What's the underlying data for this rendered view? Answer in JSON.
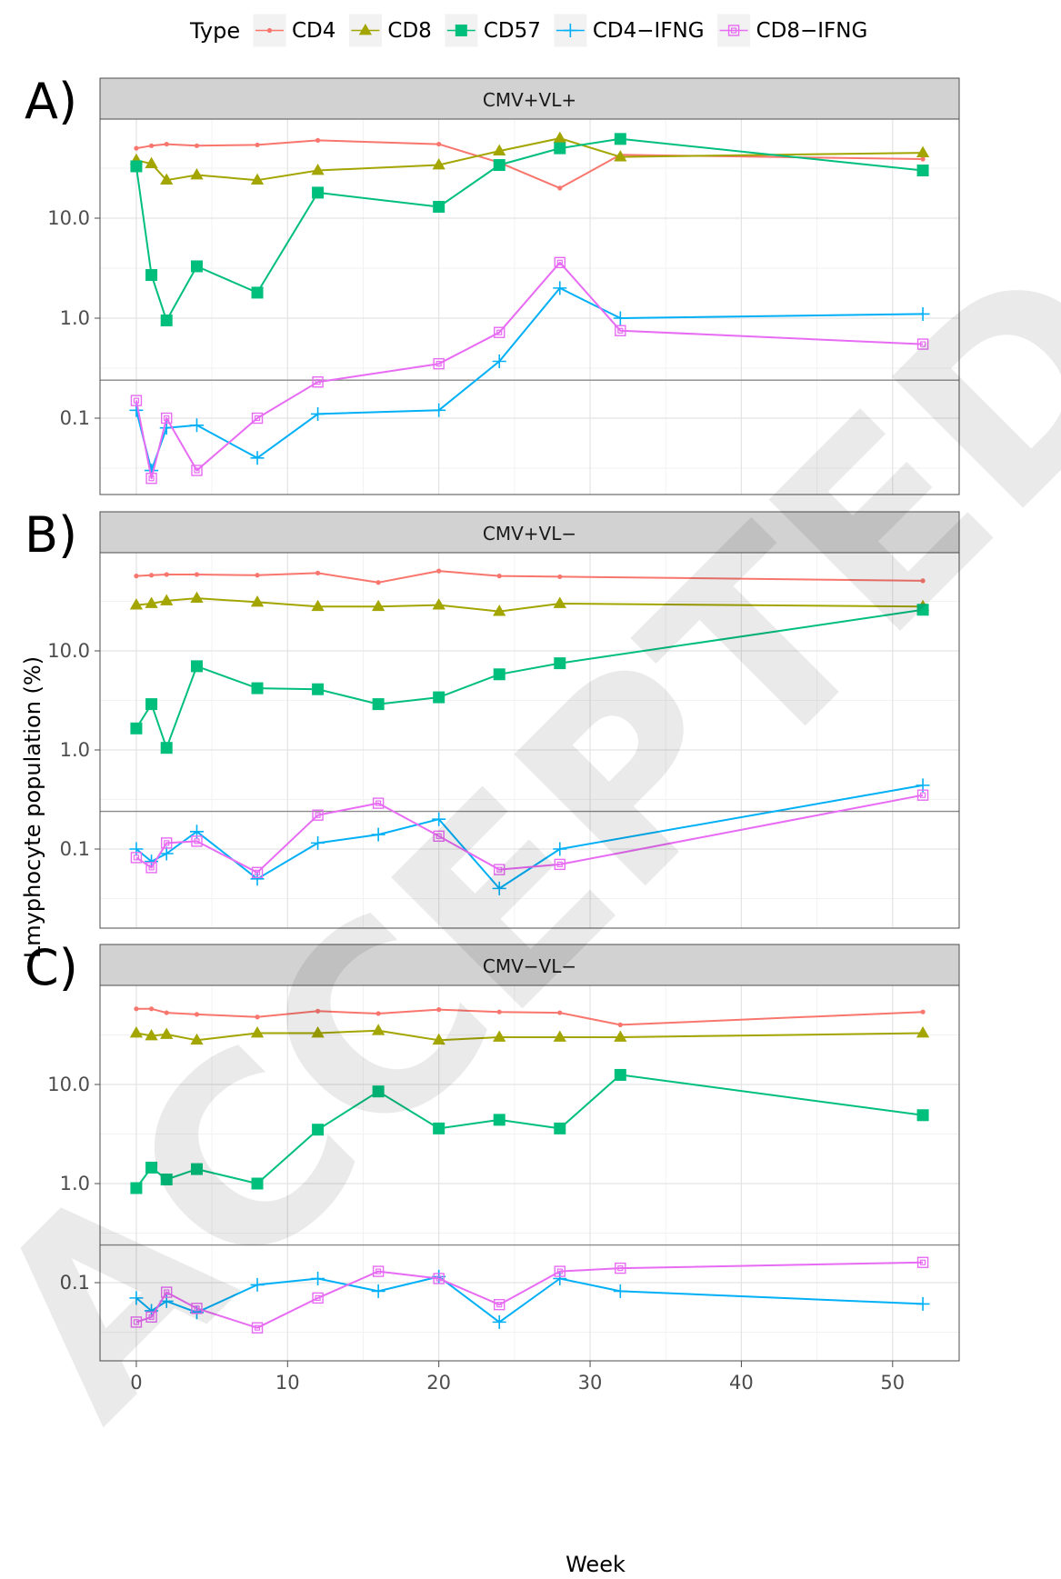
{
  "legend": {
    "title": "Type",
    "items": [
      {
        "name": "CD4",
        "color": "#F8766D",
        "marker": "dot"
      },
      {
        "name": "CD8",
        "color": "#A3A500",
        "marker": "triangle"
      },
      {
        "name": "CD57",
        "color": "#00BF7D",
        "marker": "square"
      },
      {
        "name": "CD4−IFNG",
        "color": "#00B0F6",
        "marker": "plus"
      },
      {
        "name": "CD8−IFNG",
        "color": "#E76BF3",
        "marker": "boxed-square"
      }
    ]
  },
  "axes": {
    "xlabel": "Week",
    "ylabel": "Lmyphocyte population (%)",
    "x_ticks": [
      0,
      10,
      20,
      30,
      40,
      50
    ],
    "y_tick_labels": [
      "10.0",
      "1.0",
      "0.1"
    ]
  },
  "watermark": "ACCEPTED",
  "chart_data": [
    {
      "type": "line",
      "panel_label": "A)",
      "strip": "CMV+VL+",
      "y_scale": "log",
      "series": [
        {
          "name": "CD4",
          "x": [
            0,
            1,
            2,
            4,
            8,
            12,
            20,
            24,
            28,
            32,
            52
          ],
          "y": [
            50,
            53,
            55,
            53,
            54,
            60,
            55,
            36,
            20,
            43,
            39
          ]
        },
        {
          "name": "CD8",
          "x": [
            0,
            1,
            2,
            4,
            8,
            12,
            20,
            24,
            28,
            32,
            52
          ],
          "y": [
            38,
            35,
            24,
            27,
            24,
            30,
            34,
            47,
            63,
            41,
            45
          ]
        },
        {
          "name": "CD57",
          "x": [
            0,
            1,
            2,
            4,
            8,
            12,
            20,
            24,
            28,
            32,
            52
          ],
          "y": [
            33,
            2.7,
            0.95,
            3.3,
            1.8,
            18,
            13,
            34,
            50,
            62,
            30
          ]
        },
        {
          "name": "CD4−IFNG",
          "x": [
            0,
            1,
            2,
            4,
            8,
            12,
            20,
            24,
            28,
            32,
            52
          ],
          "y": [
            0.12,
            0.03,
            0.08,
            0.085,
            0.04,
            0.11,
            0.12,
            0.37,
            2.0,
            1.0,
            1.1
          ]
        },
        {
          "name": "CD8−IFNG",
          "x": [
            0,
            1,
            2,
            4,
            8,
            12,
            20,
            24,
            28,
            32,
            52
          ],
          "y": [
            0.15,
            0.025,
            0.1,
            0.03,
            0.1,
            0.23,
            0.35,
            0.72,
            3.6,
            0.75,
            0.55
          ]
        }
      ]
    },
    {
      "type": "line",
      "panel_label": "B)",
      "strip": "CMV+VL−",
      "y_scale": "log",
      "series": [
        {
          "name": "CD4",
          "x": [
            0,
            1,
            2,
            4,
            8,
            12,
            16,
            20,
            24,
            28,
            52
          ],
          "y": [
            57,
            58,
            59,
            59,
            58,
            61,
            49,
            64,
            57,
            56,
            51
          ]
        },
        {
          "name": "CD8",
          "x": [
            0,
            1,
            2,
            4,
            8,
            12,
            16,
            20,
            24,
            28,
            52
          ],
          "y": [
            29,
            30,
            32,
            34,
            31,
            28,
            28,
            29,
            25,
            30,
            28
          ]
        },
        {
          "name": "CD57",
          "x": [
            0,
            1,
            2,
            4,
            8,
            12,
            16,
            20,
            24,
            28,
            52
          ],
          "y": [
            1.65,
            2.9,
            1.05,
            7.0,
            4.2,
            4.1,
            2.9,
            3.4,
            5.8,
            7.5,
            26
          ]
        },
        {
          "name": "CD4−IFNG",
          "x": [
            0,
            1,
            2,
            4,
            8,
            12,
            16,
            20,
            24,
            28,
            52
          ],
          "y": [
            0.1,
            0.075,
            0.09,
            0.15,
            0.05,
            0.115,
            0.14,
            0.2,
            0.04,
            0.1,
            0.44
          ]
        },
        {
          "name": "CD8−IFNG",
          "x": [
            0,
            1,
            2,
            4,
            8,
            12,
            16,
            20,
            24,
            28,
            52
          ],
          "y": [
            0.082,
            0.065,
            0.115,
            0.12,
            0.058,
            0.22,
            0.29,
            0.135,
            0.062,
            0.07,
            0.35
          ]
        }
      ]
    },
    {
      "type": "line",
      "panel_label": "C)",
      "strip": "CMV−VL−",
      "y_scale": "log",
      "series": [
        {
          "name": "CD4",
          "x": [
            0,
            1,
            2,
            4,
            8,
            12,
            16,
            20,
            24,
            28,
            32,
            52
          ],
          "y": [
            58,
            58,
            53,
            51,
            48,
            55,
            52,
            57,
            54,
            53,
            40,
            54
          ]
        },
        {
          "name": "CD8",
          "x": [
            0,
            1,
            2,
            4,
            8,
            12,
            16,
            20,
            24,
            28,
            32,
            52
          ],
          "y": [
            33,
            31,
            32,
            28,
            33,
            33,
            35,
            28,
            30,
            30,
            30,
            33
          ]
        },
        {
          "name": "CD57",
          "x": [
            0,
            1,
            2,
            4,
            8,
            12,
            16,
            20,
            24,
            28,
            32,
            52
          ],
          "y": [
            0.9,
            1.45,
            1.1,
            1.4,
            1.0,
            3.5,
            8.5,
            3.6,
            4.4,
            3.6,
            12.5,
            4.9
          ]
        },
        {
          "name": "CD4−IFNG",
          "x": [
            0,
            1,
            2,
            4,
            8,
            12,
            16,
            20,
            24,
            28,
            32,
            52
          ],
          "y": [
            0.07,
            0.052,
            0.065,
            0.05,
            0.095,
            0.11,
            0.082,
            0.115,
            0.04,
            0.11,
            0.082,
            0.061
          ]
        },
        {
          "name": "CD8−IFNG",
          "x": [
            0,
            1,
            2,
            4,
            8,
            12,
            16,
            20,
            24,
            28,
            32,
            52
          ],
          "y": [
            0.04,
            0.045,
            0.08,
            0.055,
            0.035,
            0.07,
            0.13,
            0.11,
            0.06,
            0.13,
            0.14,
            0.16
          ]
        }
      ]
    }
  ]
}
